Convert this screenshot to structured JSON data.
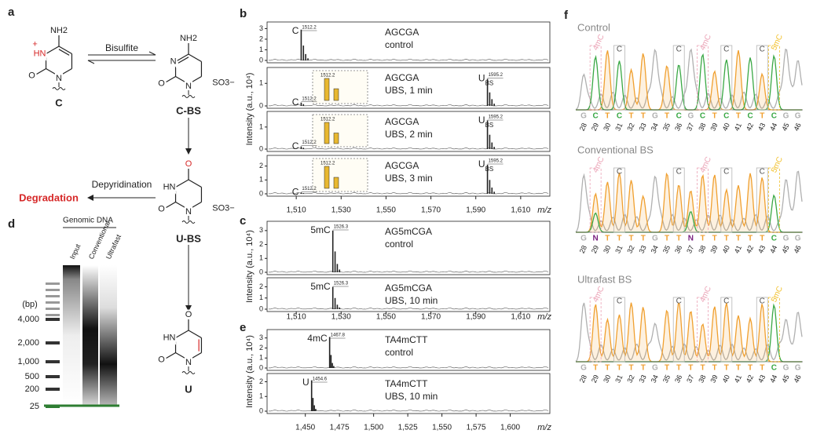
{
  "panel_a": {
    "letter": "a",
    "reagent": "Bisulfite",
    "step": "Depyridination",
    "product": "Degradation",
    "molecules": [
      {
        "name": "C",
        "atoms": [
          "NH2",
          "+",
          "HN",
          "O",
          "N"
        ]
      },
      {
        "name": "C-BS",
        "atoms": [
          "NH2",
          "N",
          "O",
          "N",
          "SO3−"
        ]
      },
      {
        "name": "U-BS",
        "atoms": [
          "O",
          "HN",
          "O",
          "N",
          "SO3−"
        ]
      },
      {
        "name": "U",
        "atoms": [
          "O",
          "HN",
          "O",
          "N"
        ]
      }
    ]
  },
  "panel_d": {
    "letter": "d",
    "title": "Genomic DNA",
    "lanes": [
      "Input",
      "Conventional",
      "Ultrafast"
    ],
    "unit": "(bp)",
    "ladder": [
      {
        "value": 4000,
        "label": "4,000"
      },
      {
        "value": 2000,
        "label": "2,000"
      },
      {
        "value": 1000,
        "label": "1,000"
      },
      500,
      200,
      25
    ]
  },
  "panel_b": {
    "letter": "b",
    "ylabel": "Intensity (a.u., 10⁴)",
    "xlabel": "m/z",
    "xlim": [
      1497,
      1623
    ],
    "xticks": [
      {
        "value": 1510,
        "label": "1,510"
      },
      {
        "value": 1530,
        "label": "1,530"
      },
      {
        "value": 1550,
        "label": "1,550"
      },
      {
        "value": 1570,
        "label": "1,570"
      },
      {
        "value": 1590,
        "label": "1,590"
      },
      {
        "value": 1610,
        "label": "1,610"
      }
    ],
    "rows": [
      {
        "lines": [
          "AGCGA",
          "control"
        ],
        "ylim": [
          0,
          3.4
        ],
        "yticks": [
          0,
          1,
          2,
          3
        ],
        "peaks": [
          {
            "mz": 1512.2,
            "height": 2.9,
            "label": "C"
          },
          {
            "mz": 1513.2,
            "height": 1.4
          },
          {
            "mz": 1514.2,
            "height": 0.6
          },
          {
            "mz": 1515.2,
            "height": 0.2
          }
        ]
      },
      {
        "lines": [
          "AGCGA",
          "UBS, 1 min"
        ],
        "ylim": [
          0,
          1.6
        ],
        "yticks": [
          0,
          1
        ],
        "peaks": [
          {
            "mz": 1512.2,
            "height": 0.15,
            "label": "C"
          },
          {
            "mz": 1513.2,
            "height": 0.08
          },
          {
            "mz": 1595.2,
            "height": 1.2,
            "label": "U",
            "label_sub": "BS"
          },
          {
            "mz": 1596.2,
            "height": 0.6
          },
          {
            "mz": 1597.2,
            "height": 0.3
          },
          {
            "mz": 1598.2,
            "height": 0.1
          }
        ]
      },
      {
        "lines": [
          "AGCGA",
          "UBS, 2 min"
        ],
        "ylim": [
          0,
          1.6
        ],
        "yticks": [
          0,
          1
        ],
        "peaks": [
          {
            "mz": 1512.2,
            "height": 0.12,
            "label": "C"
          },
          {
            "mz": 1513.2,
            "height": 0.06
          },
          {
            "mz": 1595.2,
            "height": 1.3,
            "label": "U",
            "label_sub": "BS"
          },
          {
            "mz": 1596.2,
            "height": 0.65
          },
          {
            "mz": 1597.2,
            "height": 0.3
          },
          {
            "mz": 1598.2,
            "height": 0.1
          }
        ]
      },
      {
        "lines": [
          "AGCGA",
          "UBS, 3 min"
        ],
        "ylim": [
          0,
          2.6
        ],
        "yticks": [
          0,
          1,
          2
        ],
        "peaks": [
          {
            "mz": 1512.2,
            "height": 0.1,
            "label": "C"
          },
          {
            "mz": 1513.2,
            "height": 0.05
          },
          {
            "mz": 1595.2,
            "height": 2.1,
            "label": "U",
            "label_sub": "BS"
          },
          {
            "mz": 1596.2,
            "height": 1.0
          },
          {
            "mz": 1597.2,
            "height": 0.45
          },
          {
            "mz": 1598.2,
            "height": 0.15
          }
        ]
      }
    ]
  },
  "panel_c": {
    "letter": "c",
    "ylabel": "Intensity (a.u., 10⁴)",
    "xlabel": "m/z",
    "xlim": [
      1497,
      1623
    ],
    "xticks": [
      {
        "value": 1510,
        "label": "1,510"
      },
      {
        "value": 1530,
        "label": "1,530"
      },
      {
        "value": 1550,
        "label": "1,550"
      },
      {
        "value": 1570,
        "label": "1,570"
      },
      {
        "value": 1590,
        "label": "1,590"
      },
      {
        "value": 1610,
        "label": "1,610"
      }
    ],
    "rows": [
      {
        "lines": [
          "AG5mCGA",
          "control"
        ],
        "ylim": [
          0,
          3.5
        ],
        "yticks": [
          0,
          1,
          2,
          3
        ],
        "peaks": [
          {
            "mz": 1526.3,
            "height": 3.0,
            "label": "5mC"
          },
          {
            "mz": 1527.3,
            "height": 1.5
          },
          {
            "mz": 1528.3,
            "height": 0.6
          },
          {
            "mz": 1529.3,
            "height": 0.2
          }
        ]
      },
      {
        "lines": [
          "AG5mCGA",
          "UBS, 10 min"
        ],
        "ylim": [
          0,
          2.6
        ],
        "yticks": [
          0,
          1,
          2
        ],
        "peaks": [
          {
            "mz": 1526.3,
            "height": 2.0,
            "label": "5mC"
          },
          {
            "mz": 1527.3,
            "height": 1.0
          },
          {
            "mz": 1528.3,
            "height": 0.4
          },
          {
            "mz": 1529.3,
            "height": 0.15
          }
        ]
      }
    ]
  },
  "panel_e": {
    "letter": "e",
    "ylabel": "Intensity (a.u., 10⁴)",
    "xlabel": "m/z",
    "xlim": [
      1422,
      1629
    ],
    "xticks": [
      {
        "value": 1450,
        "label": "1,450"
      },
      {
        "value": 1475,
        "label": "1,475"
      },
      {
        "value": 1500,
        "label": "1,500"
      },
      {
        "value": 1525,
        "label": "1,525"
      },
      {
        "value": 1550,
        "label": "1,550"
      },
      {
        "value": 1575,
        "label": "1,575"
      },
      {
        "value": 1600,
        "label": "1,600"
      }
    ],
    "rows": [
      {
        "lines": [
          "TA4mCTT",
          "control"
        ],
        "ylim": [
          0,
          3.6
        ],
        "yticks": [
          0,
          1,
          2,
          3
        ],
        "peaks": [
          {
            "mz": 1467.8,
            "height": 3.1,
            "label": "4mC"
          },
          {
            "mz": 1468.8,
            "height": 1.3
          },
          {
            "mz": 1469.8,
            "height": 0.5
          },
          {
            "mz": 1470.8,
            "height": 0.2
          }
        ]
      },
      {
        "lines": [
          "TA4mCTT",
          "UBS, 10 min"
        ],
        "ylim": [
          0,
          2.4
        ],
        "yticks": [
          0,
          1,
          2
        ],
        "peaks": [
          {
            "mz": 1454.6,
            "height": 2.1,
            "label": "U"
          },
          {
            "mz": 1455.6,
            "height": 0.9
          },
          {
            "mz": 1456.6,
            "height": 0.4
          },
          {
            "mz": 1457.6,
            "height": 0.15
          }
        ]
      }
    ]
  },
  "panel_f": {
    "letter": "f",
    "positions": [
      28,
      29,
      30,
      31,
      32,
      33,
      34,
      35,
      36,
      37,
      38,
      39,
      40,
      41,
      42,
      43,
      44,
      45,
      46
    ],
    "annotations": [
      {
        "label": "4mC",
        "position": 29,
        "color": "#eba3b6"
      },
      {
        "label": "C",
        "position": 31,
        "color": "#b5b5b5"
      },
      {
        "label": "C",
        "position": 36,
        "color": "#b5b5b5"
      },
      {
        "label": "4mC",
        "position": 38,
        "color": "#eba3b6"
      },
      {
        "label": "C",
        "position": 40,
        "color": "#b5b5b5"
      },
      {
        "label": "C",
        "position": 43,
        "color": "#b5b5b5"
      },
      {
        "label": "5mC",
        "position": 44,
        "color": "#f2c230"
      }
    ],
    "blocks": [
      {
        "title": "Control",
        "bases": [
          "G",
          "C",
          "T",
          "C",
          "T",
          "T",
          "G",
          "T",
          "C",
          "G",
          "C",
          "T",
          "C",
          "T",
          "C",
          "T",
          "C",
          "G",
          "G"
        ]
      },
      {
        "title": "Conventional BS",
        "bases": [
          "G",
          "N",
          "T",
          "T",
          "T",
          "T",
          "G",
          "T",
          "T",
          "N",
          "T",
          "T",
          "T",
          "T",
          "T",
          "T",
          "C",
          "G",
          "G"
        ]
      },
      {
        "title": "Ultrafast BS",
        "bases": [
          "G",
          "T",
          "T",
          "T",
          "T",
          "T",
          "G",
          "T",
          "T",
          "T",
          "T",
          "T",
          "T",
          "T",
          "T",
          "T",
          "C",
          "G",
          "G"
        ]
      }
    ]
  }
}
